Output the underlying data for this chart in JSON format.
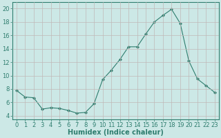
{
  "x": [
    0,
    1,
    2,
    3,
    4,
    5,
    6,
    7,
    8,
    9,
    10,
    11,
    12,
    13,
    14,
    15,
    16,
    17,
    18,
    19,
    20,
    21,
    22,
    23
  ],
  "y": [
    7.8,
    6.8,
    6.7,
    5.0,
    5.2,
    5.1,
    4.8,
    4.4,
    4.5,
    5.8,
    9.4,
    10.8,
    12.4,
    14.3,
    14.3,
    16.2,
    18.0,
    19.0,
    19.9,
    17.8,
    12.2,
    9.5,
    8.5,
    7.5
  ],
  "line_color": "#2e7d6e",
  "marker_color": "#2e7d6e",
  "bg_color": "#cce8e6",
  "grid_color": "#c8d8d6",
  "xlabel": "Humidex (Indice chaleur)",
  "xlim": [
    -0.5,
    23.5
  ],
  "ylim": [
    3.5,
    21
  ],
  "yticks": [
    4,
    6,
    8,
    10,
    12,
    14,
    16,
    18,
    20
  ],
  "xticks": [
    0,
    1,
    2,
    3,
    4,
    5,
    6,
    7,
    8,
    9,
    10,
    11,
    12,
    13,
    14,
    15,
    16,
    17,
    18,
    19,
    20,
    21,
    22,
    23
  ],
  "tick_label_fontsize": 6,
  "xlabel_fontsize": 7
}
